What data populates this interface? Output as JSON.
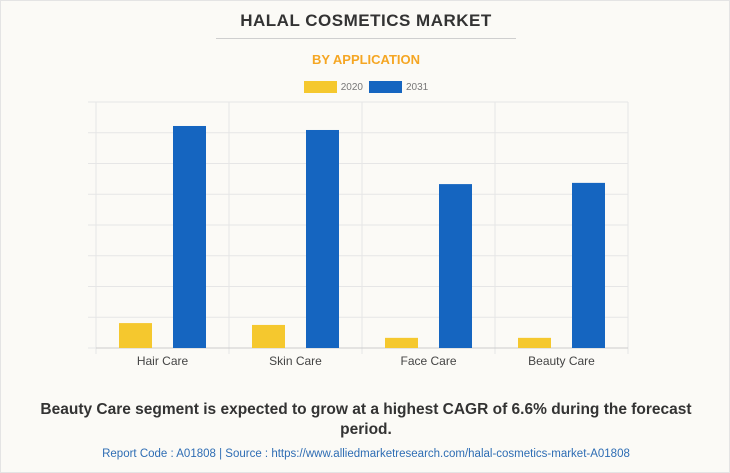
{
  "chart_data": {
    "type": "bar",
    "title": "HALAL COSMETICS MARKET",
    "subtitle": "BY APPLICATION",
    "categories": [
      "Hair Care",
      "Skin Care",
      "Face Care",
      "Beauty Care"
    ],
    "series": [
      {
        "name": "2020",
        "color": "#f5c82e",
        "values": [
          0.81,
          0.75,
          0.33,
          0.33
        ]
      },
      {
        "name": "2031",
        "color": "#1565c0",
        "values": [
          7.22,
          7.09,
          5.33,
          5.37
        ]
      }
    ],
    "ylim": [
      0,
      8
    ],
    "grid": true,
    "legend": "top-center",
    "xlabel": "",
    "ylabel": ""
  },
  "note": "Beauty Care segment is expected to grow at a highest CAGR of 6.6% during the forecast period.",
  "footer": "Report Code : A01808  |  Source : https://www.alliedmarketresearch.com/halal-cosmetics-market-A01808"
}
